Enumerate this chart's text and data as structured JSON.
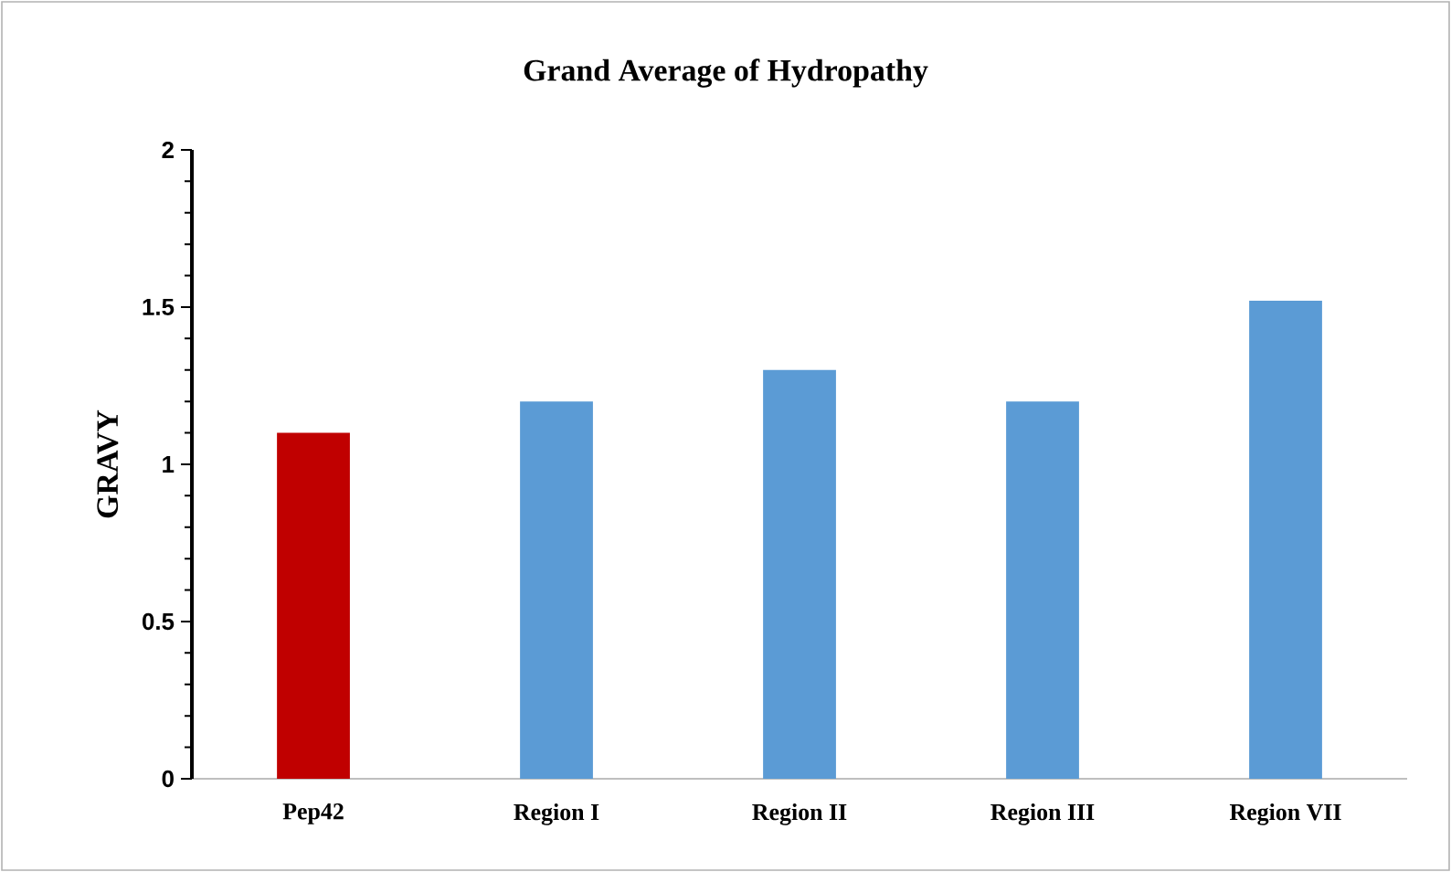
{
  "chart_data": {
    "type": "bar",
    "title": "Grand Average of Hydropathy",
    "ylabel": "GRAVY",
    "categories": [
      "Pep42",
      "Region I",
      "Region II",
      "Region III",
      "Region VII"
    ],
    "values": [
      1.1,
      1.2,
      1.3,
      1.2,
      1.52
    ],
    "colors": [
      "#c00000",
      "#5b9bd5",
      "#5b9bd5",
      "#5b9bd5",
      "#5b9bd5"
    ],
    "ylim": [
      0,
      2
    ],
    "yticks": [
      0,
      0.5,
      1,
      1.5,
      2
    ],
    "grid": false
  }
}
